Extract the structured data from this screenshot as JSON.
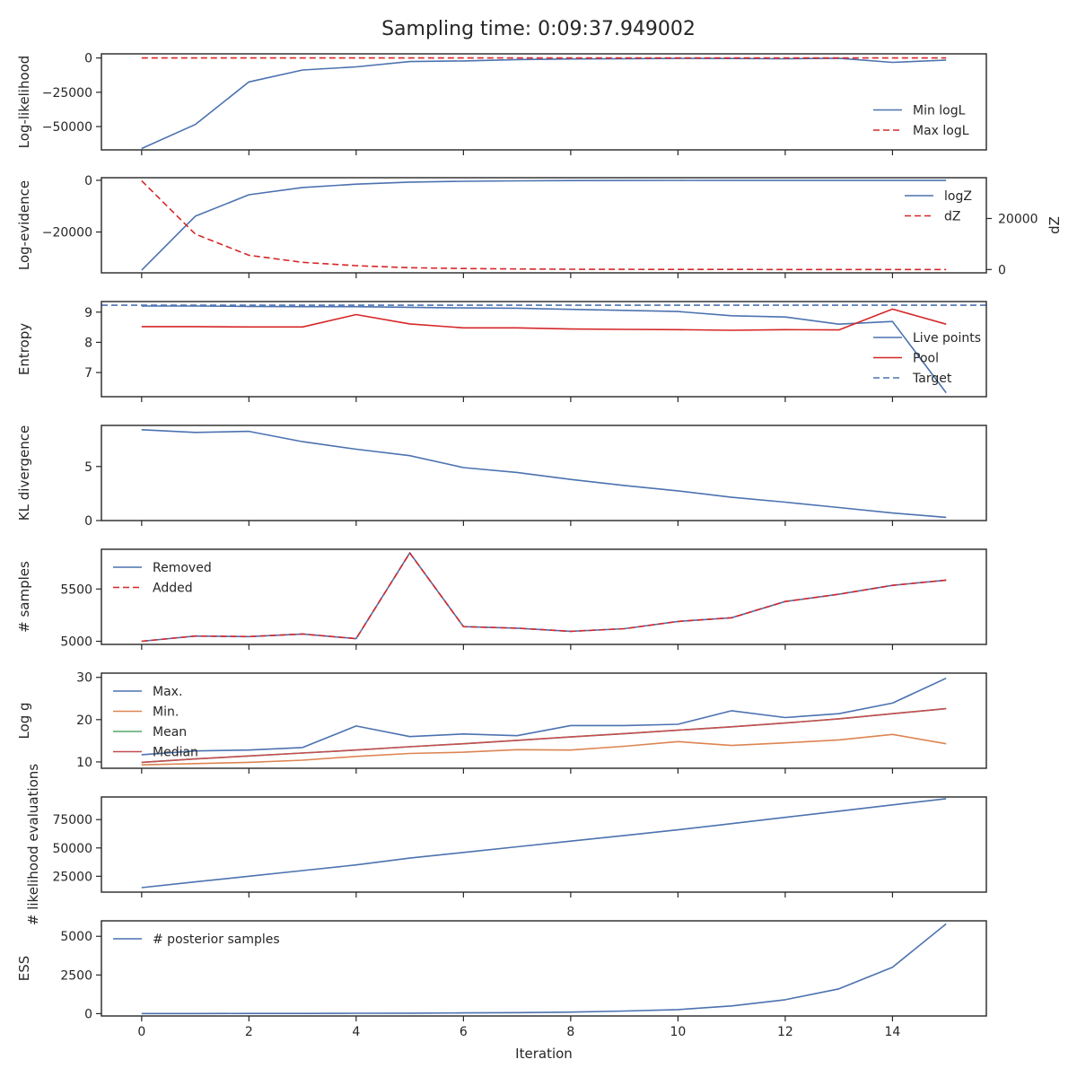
{
  "suptitle": "Sampling time: 0:09:37.949002",
  "colors": {
    "blue": "#4c72b0",
    "red": "#d62728",
    "red_line": "#c44e52",
    "orange": "#dd8452",
    "green": "#55a868",
    "dark": "#262626"
  },
  "x_axis": {
    "label": "Iteration",
    "ticks": [
      0,
      2,
      4,
      6,
      8,
      10,
      12,
      14
    ],
    "lim": [
      -0.75,
      15.75
    ]
  },
  "chart_data": [
    {
      "type": "line",
      "ylabel": "Log-likelihood",
      "ylim": [
        -67000,
        3000
      ],
      "yticks": [
        0,
        -25000,
        -50000
      ],
      "legend_loc": "lower-right",
      "series": [
        {
          "name": "Min logL",
          "color": "#4c72b0",
          "dash": false,
          "values": [
            -66000,
            -48500,
            -17500,
            -8800,
            -6500,
            -2600,
            -2200,
            -1200,
            -700,
            -500,
            -350,
            -400,
            -600,
            -200,
            -3200,
            -1600
          ]
        },
        {
          "name": "Max logL",
          "color": "#d62728",
          "dash": true,
          "values": [
            0,
            0,
            0,
            0,
            0,
            0,
            0,
            0,
            0,
            0,
            0,
            0,
            0,
            0,
            0,
            0
          ]
        }
      ]
    },
    {
      "type": "line",
      "ylabel": "Log-evidence",
      "ylim": [
        -35800,
        1000
      ],
      "yticks": [
        0,
        -20000
      ],
      "legend_loc": "upper-right",
      "y2label": "dZ",
      "y2lim": [
        -1300,
        36000
      ],
      "y2ticks": [
        0,
        20000
      ],
      "series": [
        {
          "name": "logZ",
          "color": "#4c72b0",
          "dash": false,
          "axis": "left",
          "values": [
            -34800,
            -13900,
            -5600,
            -2800,
            -1500,
            -700,
            -400,
            -200,
            -100,
            -60,
            -40,
            -20,
            -10,
            -5,
            -2,
            0
          ]
        },
        {
          "name": "dZ",
          "color": "#d62728",
          "dash": true,
          "axis": "right",
          "values": [
            34800,
            13900,
            5600,
            2800,
            1500,
            700,
            400,
            200,
            100,
            60,
            40,
            20,
            10,
            5,
            2,
            0
          ]
        }
      ]
    },
    {
      "type": "line",
      "ylabel": "Entropy",
      "ylim": [
        6.2,
        9.35
      ],
      "yticks": [
        7,
        8,
        9
      ],
      "legend_loc": "lower-right",
      "series": [
        {
          "name": "Live points",
          "color": "#4c72b0",
          "dash": false,
          "values": [
            9.2,
            9.2,
            9.19,
            9.18,
            9.18,
            9.16,
            9.14,
            9.13,
            9.09,
            9.06,
            9.02,
            8.88,
            8.84,
            8.6,
            8.69,
            6.33
          ]
        },
        {
          "name": "Pool",
          "color": "#d62728",
          "dash": false,
          "values": [
            8.52,
            8.52,
            8.51,
            8.51,
            8.92,
            8.61,
            8.48,
            8.48,
            8.44,
            8.43,
            8.42,
            8.4,
            8.42,
            8.41,
            9.1,
            8.6
          ]
        },
        {
          "name": "Target",
          "color": "#4c72b0",
          "dash": true,
          "hline": 9.23
        }
      ]
    },
    {
      "type": "line",
      "ylabel": "KL divergence",
      "ylim": [
        0,
        8.8
      ],
      "yticks": [
        0,
        5
      ],
      "legend_loc": "none",
      "series": [
        {
          "name": "",
          "color": "#4c72b0",
          "dash": false,
          "values": [
            8.4,
            8.15,
            8.25,
            7.3,
            6.6,
            6.0,
            4.9,
            4.45,
            3.8,
            3.25,
            2.75,
            2.15,
            1.7,
            1.2,
            0.7,
            0.3
          ]
        }
      ]
    },
    {
      "type": "line",
      "ylabel": "# samples",
      "ylim": [
        4970,
        5880
      ],
      "yticks": [
        5000,
        5500
      ],
      "legend_loc": "upper-left",
      "series": [
        {
          "name": "Removed",
          "color": "#4c72b0",
          "dash": false,
          "values": [
            5000,
            5050,
            5045,
            5070,
            5025,
            5845,
            5140,
            5125,
            5095,
            5120,
            5190,
            5225,
            5380,
            5450,
            5535,
            5585
          ]
        },
        {
          "name": "Added",
          "color": "#d62728",
          "dash": true,
          "values": [
            5000,
            5050,
            5045,
            5070,
            5025,
            5845,
            5140,
            5125,
            5095,
            5120,
            5190,
            5225,
            5380,
            5450,
            5535,
            5585
          ]
        }
      ]
    },
    {
      "type": "line",
      "ylabel": "Log g",
      "ylim": [
        8.5,
        31
      ],
      "yticks": [
        10,
        20,
        30
      ],
      "legend_loc": "upper-left",
      "series": [
        {
          "name": "Max.",
          "color": "#4c72b0",
          "dash": false,
          "values": [
            11.7,
            12.6,
            12.8,
            13.4,
            18.5,
            16.0,
            16.6,
            16.2,
            18.6,
            18.6,
            18.9,
            22.1,
            20.5,
            21.4,
            23.9,
            29.8
          ]
        },
        {
          "name": "Min.",
          "color": "#dd8452",
          "dash": false,
          "values": [
            9.3,
            9.6,
            9.9,
            10.4,
            11.3,
            12.0,
            12.3,
            12.9,
            12.8,
            13.7,
            14.8,
            13.9,
            14.5,
            15.2,
            16.5,
            14.3
          ]
        },
        {
          "name": "Mean",
          "color": "#55a868",
          "dash": false,
          "values": [
            9.9,
            10.7,
            11.4,
            12.1,
            12.8,
            13.6,
            14.3,
            15.1,
            15.9,
            16.7,
            17.5,
            18.3,
            19.2,
            20.2,
            21.4,
            22.6
          ]
        },
        {
          "name": "Median",
          "color": "#c44e52",
          "dash": false,
          "values": [
            9.9,
            10.7,
            11.4,
            12.1,
            12.8,
            13.6,
            14.3,
            15.1,
            15.9,
            16.7,
            17.5,
            18.3,
            19.2,
            20.2,
            21.4,
            22.6
          ]
        }
      ]
    },
    {
      "type": "line",
      "ylabel": "# likelihood evaluations",
      "ylim": [
        11000,
        95000
      ],
      "yticks": [
        25000,
        50000,
        75000
      ],
      "legend_loc": "none",
      "series": [
        {
          "name": "",
          "color": "#4c72b0",
          "dash": false,
          "values": [
            15000,
            20000,
            25000,
            30000,
            35000,
            41000,
            46000,
            51000,
            56000,
            61000,
            66000,
            71500,
            77000,
            82500,
            88000,
            93500
          ]
        }
      ]
    },
    {
      "type": "line",
      "ylabel": "ESS",
      "ylim": [
        -150,
        6000
      ],
      "yticks": [
        0,
        2500,
        5000
      ],
      "legend_loc": "upper-left",
      "series": [
        {
          "name": "# posterior samples",
          "color": "#4c72b0",
          "dash": false,
          "values": [
            5,
            7,
            10,
            15,
            22,
            30,
            45,
            65,
            100,
            170,
            260,
            500,
            900,
            1600,
            3000,
            5800
          ]
        }
      ]
    }
  ]
}
